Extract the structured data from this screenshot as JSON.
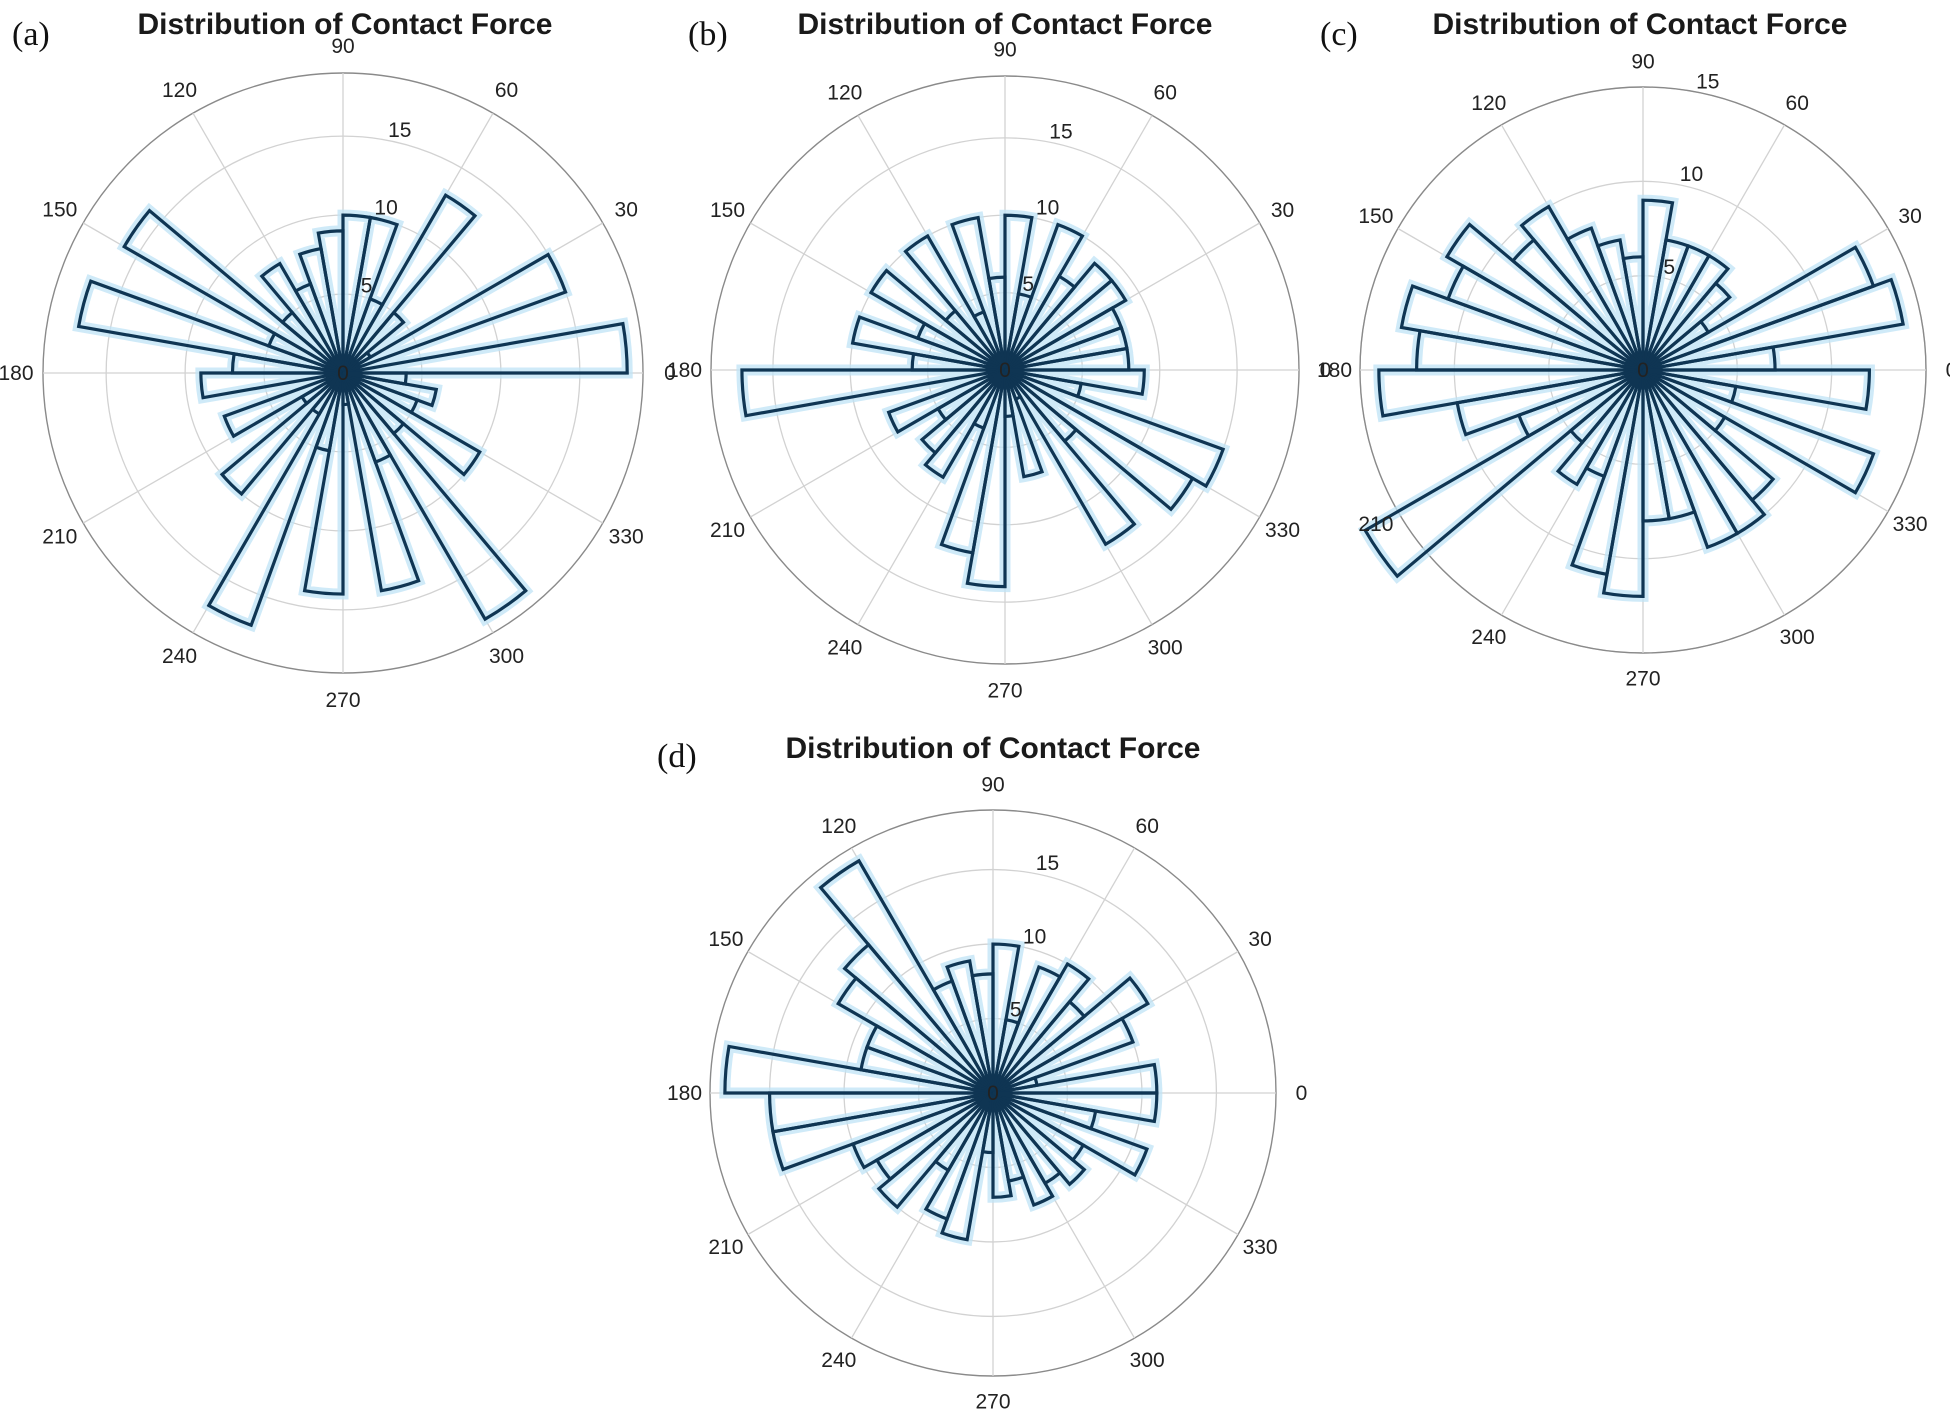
{
  "figure": {
    "panels": [
      {
        "label": "(a)"
      },
      {
        "label": "(b)"
      },
      {
        "label": "(c)"
      },
      {
        "label": "(d)"
      }
    ]
  },
  "chart_data": [
    {
      "type": "polar-histogram",
      "panel": "(a)",
      "title": "Distribution of Contact Force",
      "theta_ticks": [
        0,
        30,
        60,
        90,
        120,
        150,
        180,
        210,
        240,
        270,
        300,
        330
      ],
      "r_ticks": [
        0,
        5,
        10,
        15
      ],
      "rlim": [
        0,
        19
      ],
      "bin_width_deg": 10,
      "bin_start_deg": [
        0,
        10,
        20,
        30,
        40,
        50,
        60,
        70,
        80,
        90,
        100,
        110,
        120,
        130,
        140,
        150,
        160,
        170,
        180,
        190,
        200,
        210,
        220,
        230,
        240,
        250,
        260,
        270,
        280,
        290,
        300,
        310,
        320,
        330,
        340,
        350
      ],
      "values": [
        18,
        1,
        15,
        2,
        5,
        13,
        5,
        10,
        10,
        9,
        8,
        6,
        8,
        5,
        16,
        5,
        17,
        7,
        9,
        1,
        8,
        3,
        10,
        3,
        17,
        5,
        14,
        2,
        14,
        6,
        18,
        5,
        10,
        5,
        6,
        4
      ],
      "line_color": "#0f3553",
      "glow_color": "#bfe3f5"
    },
    {
      "type": "polar-histogram",
      "panel": "(b)",
      "title": "Distribution of Contact Force",
      "theta_ticks": [
        0,
        30,
        60,
        90,
        120,
        150,
        180,
        210,
        240,
        270,
        300,
        330
      ],
      "r_ticks": [
        0,
        5,
        10,
        15
      ],
      "rlim": [
        0,
        19
      ],
      "bin_width_deg": 10,
      "bin_start_deg": [
        0,
        10,
        20,
        30,
        40,
        50,
        60,
        70,
        80,
        90,
        100,
        110,
        120,
        130,
        140,
        150,
        160,
        170,
        180,
        190,
        200,
        210,
        220,
        230,
        240,
        250,
        260,
        270,
        280,
        290,
        300,
        310,
        320,
        330,
        340,
        350
      ],
      "values": [
        8,
        8,
        8,
        9,
        9,
        7,
        10,
        5,
        10,
        6,
        10,
        4,
        10,
        5,
        10,
        6,
        10,
        6,
        17,
        1,
        8,
        5,
        7,
        8,
        4,
        12,
        14,
        3,
        7,
        2,
        13,
        6,
        14,
        15,
        5,
        9
      ],
      "line_color": "#0f3553",
      "glow_color": "#bfe3f5"
    },
    {
      "type": "polar-histogram",
      "panel": "(c)",
      "title": "Distribution of Contact Force",
      "theta_ticks": [
        0,
        30,
        60,
        90,
        120,
        150,
        180,
        210,
        240,
        270,
        300,
        330
      ],
      "r_ticks": [
        0,
        5,
        10,
        15
      ],
      "rlim": [
        0,
        15
      ],
      "bin_width_deg": 10,
      "bin_start_deg": [
        0,
        10,
        20,
        30,
        40,
        50,
        60,
        70,
        80,
        90,
        100,
        110,
        120,
        130,
        140,
        150,
        160,
        170,
        180,
        190,
        200,
        210,
        220,
        230,
        240,
        250,
        260,
        270,
        280,
        290,
        300,
        310,
        320,
        330,
        340,
        350
      ],
      "values": [
        7,
        14,
        13,
        4,
        6,
        7,
        7,
        7,
        9,
        6,
        7,
        8,
        10,
        9,
        12,
        11,
        13,
        12,
        14,
        10,
        7,
        17,
        5,
        7,
        6,
        11,
        12,
        8,
        8,
        10,
        10,
        9,
        5,
        13,
        5,
        12
      ],
      "line_color": "#0f3553",
      "glow_color": "#bfe3f5"
    },
    {
      "type": "polar-histogram",
      "panel": "(d)",
      "title": "Distribution of Contact Force",
      "theta_ticks": [
        0,
        30,
        60,
        90,
        120,
        150,
        180,
        210,
        240,
        270,
        300,
        330
      ],
      "r_ticks": [
        0,
        5,
        10,
        15
      ],
      "rlim": [
        0,
        19
      ],
      "bin_width_deg": 10,
      "bin_start_deg": [
        0,
        10,
        20,
        30,
        40,
        50,
        60,
        70,
        80,
        90,
        100,
        110,
        120,
        130,
        140,
        150,
        160,
        170,
        180,
        190,
        200,
        210,
        220,
        230,
        240,
        250,
        260,
        270,
        280,
        290,
        300,
        310,
        320,
        330,
        340,
        350
      ],
      "values": [
        11,
        3,
        10,
        12,
        8,
        10,
        9,
        5,
        10,
        8,
        9,
        8,
        18,
        13,
        12,
        9,
        9,
        18,
        15,
        15,
        10,
        9,
        10,
        6,
        9,
        10,
        4,
        7,
        6,
        8,
        7,
        8,
        7,
        11,
        7,
        11
      ],
      "line_color": "#0f3553",
      "glow_color": "#bfe3f5"
    }
  ]
}
